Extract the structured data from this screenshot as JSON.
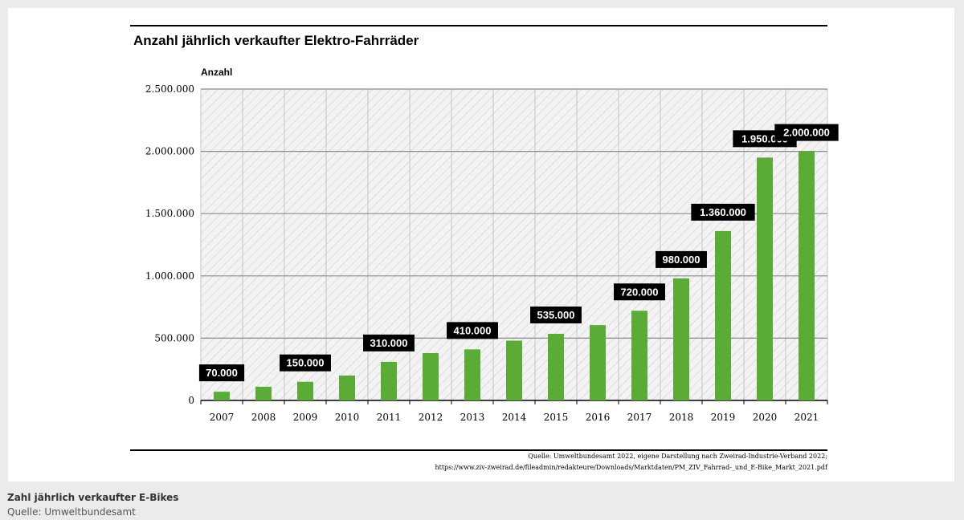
{
  "chart_data": {
    "type": "bar",
    "title": "Anzahl jährlich verkaufter Elektro-Fahrräder",
    "ylabel": "Anzahl",
    "xlabel": "",
    "ylim": [
      0,
      2500000
    ],
    "yticks": [
      0,
      500000,
      1000000,
      1500000,
      2000000,
      2500000
    ],
    "ytick_labels": [
      "0",
      "500.000",
      "1.000.000",
      "1.500.000",
      "2.000.000",
      "2.500.000"
    ],
    "grid": true,
    "categories": [
      "2007",
      "2008",
      "2009",
      "2010",
      "2011",
      "2012",
      "2013",
      "2014",
      "2015",
      "2016",
      "2017",
      "2018",
      "2019",
      "2020",
      "2021"
    ],
    "values": [
      70000,
      110000,
      150000,
      200000,
      310000,
      380000,
      410000,
      480000,
      535000,
      605000,
      720000,
      980000,
      1360000,
      1950000,
      2000000
    ],
    "data_labels": [
      {
        "category": "2007",
        "text": "70.000"
      },
      {
        "category": "2009",
        "text": "150.000"
      },
      {
        "category": "2011",
        "text": "310.000"
      },
      {
        "category": "2013",
        "text": "410.000"
      },
      {
        "category": "2015",
        "text": "535.000"
      },
      {
        "category": "2017",
        "text": "720.000"
      },
      {
        "category": "2018",
        "text": "980.000"
      },
      {
        "category": "2019",
        "text": "1.360.000"
      },
      {
        "category": "2020",
        "text": "1.950.000"
      },
      {
        "category": "2021",
        "text": "2.000.000"
      }
    ],
    "source_lines": [
      "Quelle: Umweltbundesamt 2022, eigene Darstellung nach Zweirad-Industrie-Verband 2022;",
      "https://www.ziv-zweirad.de/fileadmin/redakteure/Downloads/Marktdaten/PM_ZIV_Fahrrad-_und_E-Bike_Markt_2021.pdf"
    ],
    "colors": {
      "bar": "#5aac37",
      "label_bg": "#000000",
      "label_text": "#ffffff",
      "grid": "#8a8a8a",
      "plot_bg": "#f2f2f2"
    }
  },
  "caption": {
    "title": "Zahl jährlich verkaufter E-Bikes",
    "source": "Quelle: Umweltbundesamt"
  }
}
